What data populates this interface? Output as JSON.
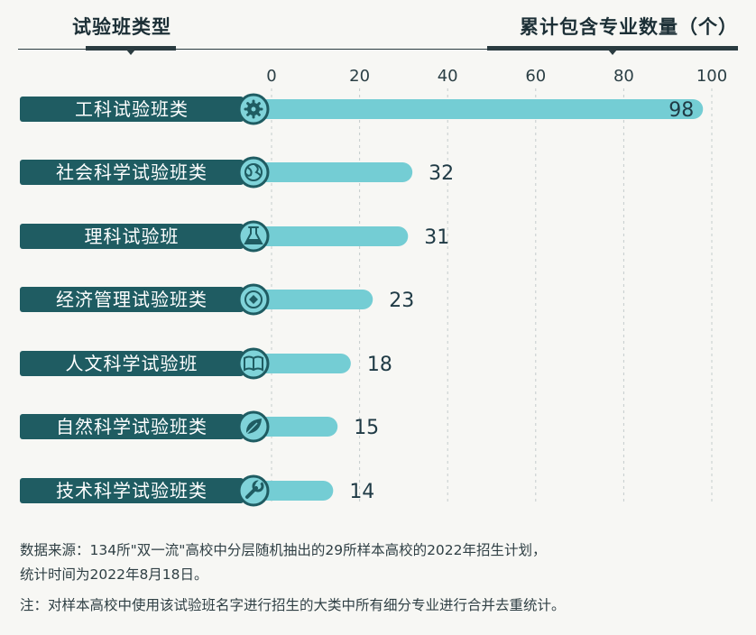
{
  "header": {
    "left_title": "试验班类型",
    "right_title": "累计包含专业数量（个）"
  },
  "chart_data": {
    "type": "bar",
    "orientation": "horizontal",
    "categories": [
      "工科试验班类",
      "社会科学试验班类",
      "理科试验班",
      "经济管理试验班类",
      "人文科学试验班",
      "自然科学试验班类",
      "技术科学试验班类"
    ],
    "values": [
      98,
      32,
      31,
      23,
      18,
      15,
      14
    ],
    "icons": [
      "gear-icon",
      "globe-icon",
      "flask-icon",
      "diamond-icon",
      "book-icon",
      "leaf-icon",
      "wrench-icon"
    ],
    "xlim": [
      0,
      100
    ],
    "ticks": [
      0,
      20,
      40,
      60,
      80,
      100
    ],
    "grid": true,
    "colors": {
      "label_bg": "#1f5c62",
      "bar": "#74cdd4",
      "icon_ring": "#1f5c62",
      "icon_fill": "#7fd3d9",
      "value_text": "#1f3a45"
    }
  },
  "notes": {
    "source_line1": "数据来源：134所\"双一流\"高校中分层随机抽出的29所样本高校的2022年招生计划，",
    "source_line2": "统计时间为2022年8月18日。",
    "note": "注：对样本高校中使用该试验班名字进行招生的大类中所有细分专业进行合并去重统计。"
  }
}
